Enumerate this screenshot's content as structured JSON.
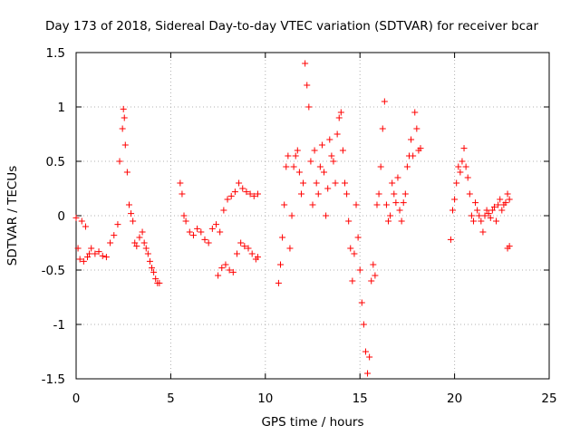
{
  "chart_data": {
    "type": "scatter",
    "title": "Day 173 of 2018, Sidereal Day-to-day VTEC variation (SDTVAR) for receiver bcar",
    "xlabel": "GPS time / hours",
    "ylabel": "SDTVAR / TECUs",
    "xlim": [
      0,
      25
    ],
    "ylim": [
      -1.5,
      1.5
    ],
    "xticks": [
      0,
      5,
      10,
      15,
      20,
      25
    ],
    "xtick_labels": [
      "0",
      "5",
      "10",
      "15",
      "20",
      "25"
    ],
    "yticks": [
      -1.5,
      -1,
      -0.5,
      0,
      0.5,
      1,
      1.5
    ],
    "ytick_labels": [
      "-1.5",
      "-1",
      "-0.5",
      "0",
      "0.5",
      "1",
      "1.5"
    ],
    "grid": true,
    "marker": "+",
    "color": "#ff0000",
    "series": [
      {
        "name": "SDTVAR",
        "points": [
          [
            0.0,
            -0.02
          ],
          [
            0.1,
            -0.3
          ],
          [
            0.2,
            -0.4
          ],
          [
            0.3,
            -0.05
          ],
          [
            0.4,
            -0.42
          ],
          [
            0.5,
            -0.1
          ],
          [
            0.6,
            -0.38
          ],
          [
            0.7,
            -0.35
          ],
          [
            0.8,
            -0.3
          ],
          [
            1.0,
            -0.35
          ],
          [
            1.2,
            -0.33
          ],
          [
            1.4,
            -0.37
          ],
          [
            1.6,
            -0.38
          ],
          [
            1.8,
            -0.25
          ],
          [
            2.0,
            -0.18
          ],
          [
            2.2,
            -0.08
          ],
          [
            2.3,
            0.5
          ],
          [
            2.45,
            0.8
          ],
          [
            2.5,
            0.98
          ],
          [
            2.55,
            0.9
          ],
          [
            2.6,
            0.65
          ],
          [
            2.7,
            0.4
          ],
          [
            2.8,
            0.1
          ],
          [
            2.9,
            0.02
          ],
          [
            3.0,
            -0.05
          ],
          [
            3.1,
            -0.25
          ],
          [
            3.2,
            -0.28
          ],
          [
            3.35,
            -0.2
          ],
          [
            3.5,
            -0.15
          ],
          [
            3.6,
            -0.25
          ],
          [
            3.7,
            -0.3
          ],
          [
            3.8,
            -0.35
          ],
          [
            3.9,
            -0.42
          ],
          [
            4.0,
            -0.48
          ],
          [
            4.1,
            -0.52
          ],
          [
            4.2,
            -0.58
          ],
          [
            4.3,
            -0.62
          ],
          [
            4.4,
            -0.62
          ],
          [
            5.5,
            0.3
          ],
          [
            5.6,
            0.2
          ],
          [
            5.7,
            0.0
          ],
          [
            5.8,
            -0.05
          ],
          [
            6.0,
            -0.15
          ],
          [
            6.2,
            -0.18
          ],
          [
            6.4,
            -0.12
          ],
          [
            6.6,
            -0.15
          ],
          [
            6.8,
            -0.22
          ],
          [
            7.0,
            -0.25
          ],
          [
            7.2,
            -0.12
          ],
          [
            7.4,
            -0.08
          ],
          [
            7.6,
            -0.15
          ],
          [
            7.8,
            0.05
          ],
          [
            8.0,
            0.15
          ],
          [
            8.2,
            0.18
          ],
          [
            8.4,
            0.22
          ],
          [
            8.6,
            0.3
          ],
          [
            8.8,
            0.25
          ],
          [
            9.0,
            0.22
          ],
          [
            9.2,
            0.2
          ],
          [
            9.4,
            0.18
          ],
          [
            9.6,
            0.2
          ],
          [
            7.5,
            -0.55
          ],
          [
            7.7,
            -0.48
          ],
          [
            7.9,
            -0.45
          ],
          [
            8.1,
            -0.5
          ],
          [
            8.3,
            -0.52
          ],
          [
            8.5,
            -0.35
          ],
          [
            8.7,
            -0.25
          ],
          [
            8.9,
            -0.28
          ],
          [
            9.1,
            -0.3
          ],
          [
            9.3,
            -0.35
          ],
          [
            9.5,
            -0.4
          ],
          [
            9.6,
            -0.38
          ],
          [
            10.7,
            -0.62
          ],
          [
            10.8,
            -0.45
          ],
          [
            10.9,
            -0.2
          ],
          [
            11.0,
            0.1
          ],
          [
            11.1,
            0.45
          ],
          [
            11.2,
            0.55
          ],
          [
            11.3,
            -0.3
          ],
          [
            11.4,
            0.0
          ],
          [
            11.5,
            0.45
          ],
          [
            11.6,
            0.55
          ],
          [
            11.7,
            0.6
          ],
          [
            11.8,
            0.4
          ],
          [
            11.9,
            0.2
          ],
          [
            12.0,
            0.3
          ],
          [
            12.1,
            1.4
          ],
          [
            12.2,
            1.2
          ],
          [
            12.3,
            1.0
          ],
          [
            12.4,
            0.5
          ],
          [
            12.5,
            0.1
          ],
          [
            12.6,
            0.6
          ],
          [
            12.7,
            0.3
          ],
          [
            12.8,
            0.2
          ],
          [
            12.9,
            0.45
          ],
          [
            13.0,
            0.65
          ],
          [
            13.1,
            0.4
          ],
          [
            13.2,
            0.0
          ],
          [
            13.3,
            0.25
          ],
          [
            13.4,
            0.7
          ],
          [
            13.5,
            0.55
          ],
          [
            13.6,
            0.5
          ],
          [
            13.7,
            0.3
          ],
          [
            13.8,
            0.75
          ],
          [
            13.9,
            0.9
          ],
          [
            14.0,
            0.95
          ],
          [
            14.1,
            0.6
          ],
          [
            14.2,
            0.3
          ],
          [
            14.3,
            0.2
          ],
          [
            14.4,
            -0.05
          ],
          [
            14.5,
            -0.3
          ],
          [
            14.6,
            -0.6
          ],
          [
            14.7,
            -0.35
          ],
          [
            14.8,
            0.1
          ],
          [
            14.9,
            -0.2
          ],
          [
            15.0,
            -0.5
          ],
          [
            15.1,
            -0.8
          ],
          [
            15.2,
            -1.0
          ],
          [
            15.3,
            -1.25
          ],
          [
            15.4,
            -1.45
          ],
          [
            15.5,
            -1.3
          ],
          [
            15.6,
            -0.6
          ],
          [
            15.7,
            -0.45
          ],
          [
            15.8,
            -0.55
          ],
          [
            15.9,
            0.1
          ],
          [
            16.0,
            0.2
          ],
          [
            16.1,
            0.45
          ],
          [
            16.2,
            0.8
          ],
          [
            16.3,
            1.05
          ],
          [
            16.4,
            0.1
          ],
          [
            16.5,
            -0.05
          ],
          [
            16.6,
            0.0
          ],
          [
            16.7,
            0.3
          ],
          [
            16.8,
            0.2
          ],
          [
            16.9,
            0.12
          ],
          [
            17.0,
            0.35
          ],
          [
            17.1,
            0.05
          ],
          [
            17.2,
            -0.05
          ],
          [
            17.3,
            0.12
          ],
          [
            17.4,
            0.2
          ],
          [
            17.5,
            0.45
          ],
          [
            17.6,
            0.55
          ],
          [
            17.7,
            0.7
          ],
          [
            17.8,
            0.55
          ],
          [
            17.9,
            0.95
          ],
          [
            18.0,
            0.8
          ],
          [
            18.1,
            0.6
          ],
          [
            18.2,
            0.62
          ],
          [
            19.8,
            -0.22
          ],
          [
            19.9,
            0.05
          ],
          [
            20.0,
            0.15
          ],
          [
            20.1,
            0.3
          ],
          [
            20.2,
            0.45
          ],
          [
            20.3,
            0.4
          ],
          [
            20.4,
            0.5
          ],
          [
            20.5,
            0.62
          ],
          [
            20.6,
            0.45
          ],
          [
            20.7,
            0.35
          ],
          [
            20.8,
            0.2
          ],
          [
            20.9,
            0.0
          ],
          [
            21.0,
            -0.05
          ],
          [
            21.1,
            0.12
          ],
          [
            21.2,
            0.05
          ],
          [
            21.3,
            0.0
          ],
          [
            21.4,
            -0.05
          ],
          [
            21.5,
            -0.15
          ],
          [
            21.6,
            0.0
          ],
          [
            21.7,
            0.05
          ],
          [
            21.8,
            0.02
          ],
          [
            21.9,
            -0.02
          ],
          [
            22.0,
            0.05
          ],
          [
            22.1,
            0.08
          ],
          [
            22.2,
            -0.05
          ],
          [
            22.3,
            0.1
          ],
          [
            22.4,
            0.15
          ],
          [
            22.5,
            0.05
          ],
          [
            22.6,
            0.1
          ],
          [
            22.7,
            0.12
          ],
          [
            22.8,
            0.2
          ],
          [
            22.9,
            0.15
          ],
          [
            22.8,
            -0.3
          ],
          [
            22.9,
            -0.28
          ]
        ]
      }
    ]
  }
}
